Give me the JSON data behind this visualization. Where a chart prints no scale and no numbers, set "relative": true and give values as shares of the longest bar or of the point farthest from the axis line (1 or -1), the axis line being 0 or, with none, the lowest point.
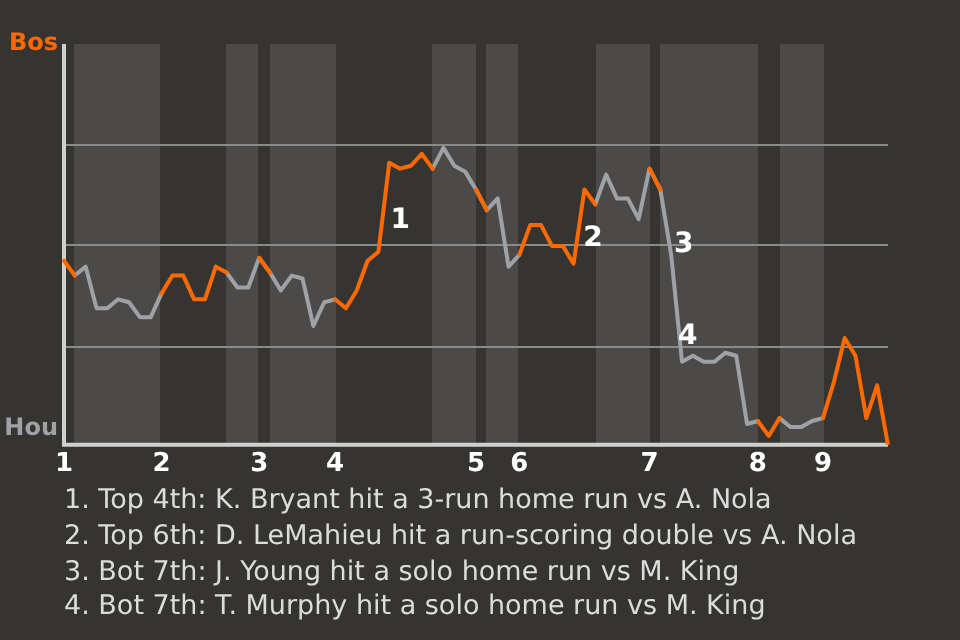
{
  "chart_data": {
    "type": "line",
    "relative": true,
    "categories": [
      "1",
      null,
      null,
      null,
      null,
      null,
      null,
      null,
      null,
      "2",
      null,
      null,
      null,
      null,
      null,
      null,
      null,
      null,
      "3",
      null,
      null,
      null,
      null,
      null,
      null,
      "4",
      null,
      null,
      null,
      null,
      null,
      null,
      null,
      null,
      null,
      null,
      null,
      null,
      "5",
      null,
      null,
      null,
      "6",
      null,
      null,
      null,
      null,
      null,
      null,
      null,
      null,
      null,
      null,
      null,
      "7",
      null,
      null,
      null,
      null,
      null,
      null,
      null,
      null,
      null,
      "8",
      null,
      null,
      null,
      null,
      null,
      "9",
      null,
      null,
      null,
      null,
      null,
      null
    ],
    "series": [
      {
        "color": "#9ea2a6",
        "values": [
          null,
          0.57,
          0.6,
          0.46,
          0.46,
          0.49,
          0.48,
          0.43,
          0.43,
          0.51,
          null,
          null,
          null,
          null,
          null,
          0.58,
          0.53,
          0.53,
          0.63,
          0.58,
          0.52,
          0.57,
          0.56,
          0.4,
          0.48,
          0.49,
          null,
          null,
          null,
          null,
          null,
          null,
          null,
          null,
          0.93,
          1,
          0.94,
          0.92,
          0.86,
          0.79,
          0.83,
          0.6,
          0.64,
          null,
          null,
          null,
          null,
          null,
          null,
          0.81,
          0.91,
          0.83,
          0.83,
          0.76,
          0.93,
          0.86,
          0.64,
          0.28,
          0.3,
          0.28,
          0.28,
          0.31,
          0.3,
          0.07,
          0.08,
          null,
          0.09,
          0.06,
          0.06,
          0.08,
          0.09,
          null,
          null,
          null,
          null,
          null,
          null
        ]
      },
      {
        "color": "#ff6a00",
        "values": [
          0.62,
          0.57,
          null,
          null,
          null,
          null,
          null,
          null,
          null,
          0.51,
          0.57,
          0.57,
          0.49,
          0.49,
          0.6,
          0.58,
          null,
          null,
          0.63,
          0.58,
          null,
          null,
          null,
          null,
          null,
          0.49,
          0.46,
          0.52,
          0.62,
          0.65,
          0.95,
          0.93,
          0.94,
          0.98,
          0.93,
          null,
          null,
          null,
          0.86,
          0.79,
          null,
          null,
          0.64,
          0.74,
          0.74,
          0.67,
          0.67,
          0.61,
          0.86,
          0.81,
          null,
          null,
          null,
          null,
          0.93,
          0.86,
          null,
          null,
          null,
          null,
          null,
          null,
          null,
          null,
          0.08,
          0.03,
          0.09,
          null,
          null,
          null,
          0.09,
          0.21,
          0.36,
          0.3,
          0.09,
          0.2,
          0
        ]
      }
    ],
    "ref_lines": [
      {
        "axis": "y",
        "value": 0.336,
        "color": "#8a8a8a"
      },
      {
        "axis": "y",
        "value": 0.673,
        "color": "#8a8a8a"
      },
      {
        "axis": "y",
        "value": 1.01,
        "color": "#8a8a8a"
      }
    ],
    "legend": false,
    "marker": "none",
    "line_style": "solid",
    "annotations": [
      "Bos",
      "Hou",
      "1",
      "2",
      "3",
      "4",
      "1. Top 4th: K. Bryant hit a 3-run home run vs A. Nola",
      "2. Top 6th: D. LeMahieu hit a run-scoring double vs A. Nola",
      "3. Bot 7th: J. Young hit a solo home run vs M. King",
      "4. Bot 7th: T. Murphy hit a solo home run vs M. King"
    ]
  }
}
